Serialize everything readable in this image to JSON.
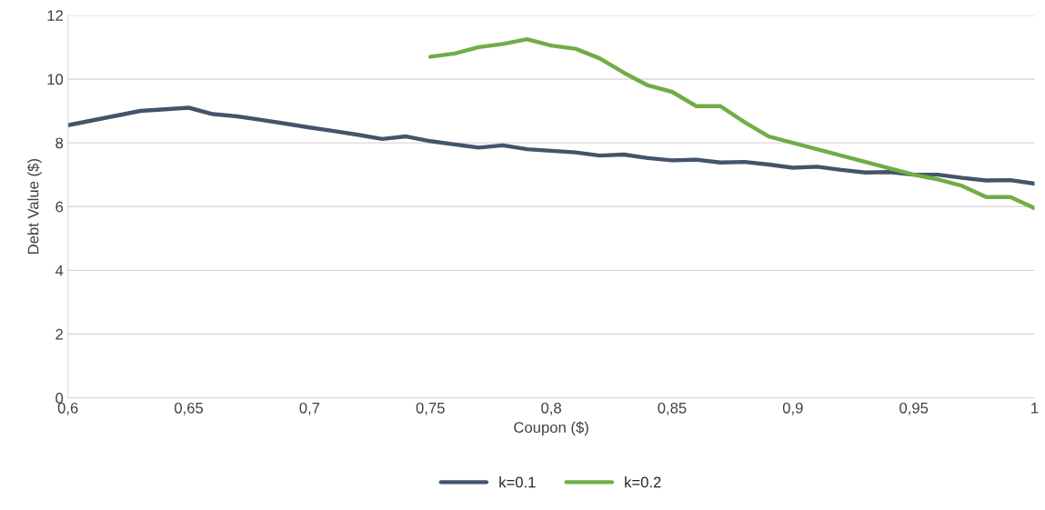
{
  "chart_data": {
    "type": "line",
    "xlabel": "Coupon ($)",
    "ylabel": "Debt Value ($)",
    "xlim": [
      0.6,
      1
    ],
    "xticks": [
      {
        "value": 0.6,
        "label": "0,6"
      },
      {
        "value": 0.65,
        "label": "0,65"
      },
      {
        "value": 0.7,
        "label": "0,7"
      },
      {
        "value": 0.75,
        "label": "0,75"
      },
      {
        "value": 0.8,
        "label": "0,8"
      },
      {
        "value": 0.85,
        "label": "0,85"
      },
      {
        "value": 0.9,
        "label": "0,9"
      },
      {
        "value": 0.95,
        "label": "0,95"
      },
      {
        "value": 1,
        "label": "1"
      }
    ],
    "ylim": [
      0,
      12
    ],
    "yticks": [
      0,
      2,
      4,
      6,
      8,
      10,
      12
    ],
    "grid": "y",
    "legend": "bottom",
    "marker": "none",
    "line_style": "solid",
    "series": [
      {
        "name": "k=0.1",
        "color": "#44546a",
        "x": [
          0.6,
          0.61,
          0.62,
          0.63,
          0.64,
          0.65,
          0.66,
          0.67,
          0.68,
          0.69,
          0.7,
          0.71,
          0.72,
          0.73,
          0.74,
          0.75,
          0.76,
          0.77,
          0.78,
          0.79,
          0.8,
          0.81,
          0.82,
          0.83,
          0.84,
          0.85,
          0.86,
          0.87,
          0.88,
          0.89,
          0.9,
          0.91,
          0.92,
          0.93,
          0.94,
          0.95,
          0.96,
          0.97,
          0.98,
          0.99,
          1
        ],
        "values": [
          8.55,
          8.7,
          8.85,
          9.0,
          9.05,
          9.1,
          8.9,
          8.83,
          8.72,
          8.6,
          8.48,
          8.37,
          8.25,
          8.12,
          8.2,
          8.05,
          7.95,
          7.85,
          7.92,
          7.8,
          7.75,
          7.7,
          7.6,
          7.63,
          7.52,
          7.45,
          7.47,
          7.38,
          7.4,
          7.32,
          7.22,
          7.25,
          7.15,
          7.07,
          7.08,
          7.0,
          7.0,
          6.9,
          6.82,
          6.83,
          6.72
        ]
      },
      {
        "name": "k=0.2",
        "color": "#70ad47",
        "x": [
          0.75,
          0.76,
          0.77,
          0.78,
          0.79,
          0.8,
          0.81,
          0.82,
          0.83,
          0.84,
          0.85,
          0.86,
          0.87,
          0.88,
          0.89,
          0.9,
          0.91,
          0.92,
          0.93,
          0.94,
          0.95,
          0.96,
          0.97,
          0.98,
          0.99,
          1
        ],
        "values": [
          10.7,
          10.8,
          11.0,
          11.1,
          11.25,
          11.05,
          10.95,
          10.65,
          10.2,
          9.8,
          9.6,
          9.15,
          9.15,
          8.65,
          8.2,
          8.0,
          7.8,
          7.6,
          7.4,
          7.2,
          7.0,
          6.85,
          6.65,
          6.3,
          6.3,
          5.95
        ]
      }
    ]
  }
}
